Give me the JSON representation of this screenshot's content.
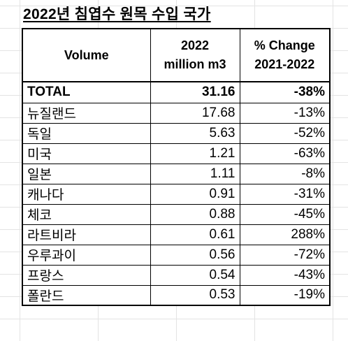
{
  "title": "2022년 침엽수 원목 수입 국가",
  "table": {
    "headers": {
      "name": "Volume",
      "vol_line1": "2022",
      "vol_line2": "million m3",
      "chg_line1": "% Change",
      "chg_line2": "2021-2022"
    },
    "rows": [
      {
        "name": "TOTAL",
        "volume": "31.16",
        "change": "-38%"
      },
      {
        "name": "뉴질랜드",
        "volume": "17.68",
        "change": "-13%"
      },
      {
        "name": "독일",
        "volume": "5.63",
        "change": "-52%"
      },
      {
        "name": "미국",
        "volume": "1.21",
        "change": "-63%"
      },
      {
        "name": "일본",
        "volume": "1.11",
        "change": "-8%"
      },
      {
        "name": "캐나다",
        "volume": "0.91",
        "change": "-31%"
      },
      {
        "name": "체코",
        "volume": "0.88",
        "change": "-45%"
      },
      {
        "name": "라트비라",
        "volume": "0.61",
        "change": "288%"
      },
      {
        "name": "우루과이",
        "volume": "0.56",
        "change": "-72%"
      },
      {
        "name": "프랑스",
        "volume": "0.54",
        "change": "-43%"
      },
      {
        "name": "폴란드",
        "volume": "0.53",
        "change": "-19%"
      }
    ]
  }
}
